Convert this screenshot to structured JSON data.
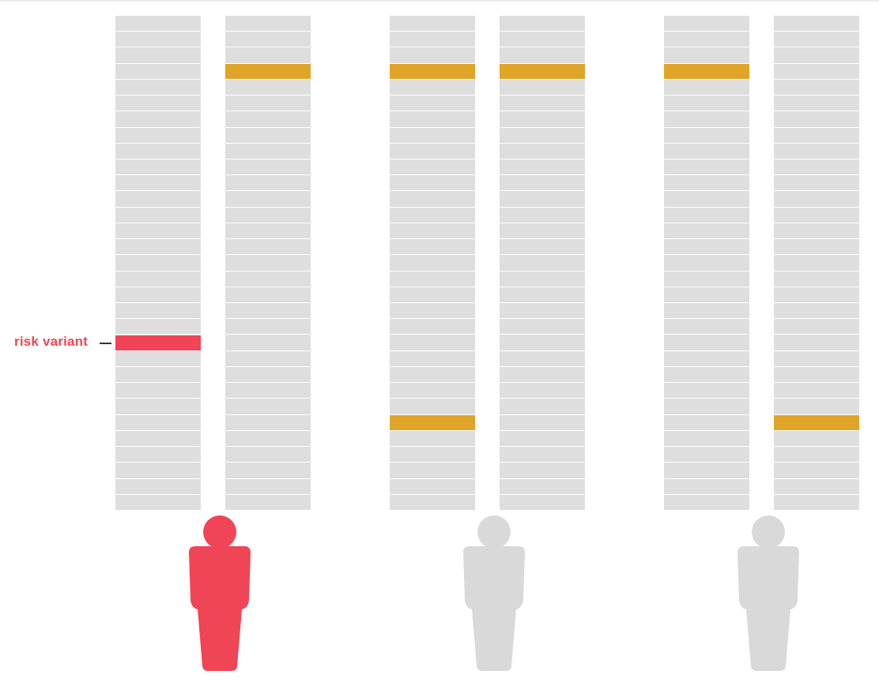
{
  "diagram": {
    "label": "risk variant",
    "segments_per_column": 31,
    "colors": {
      "segment": "#dedede",
      "highlight": "#e0a528",
      "risk": "#f04556",
      "person_affected": "#f04556",
      "person_unaffected": "#d9d9d9"
    },
    "people": [
      {
        "affected": true,
        "columns": [
          {
            "markers": [
              {
                "segment": 20,
                "type": "risk"
              }
            ]
          },
          {
            "markers": [
              {
                "segment": 3,
                "type": "highlight"
              }
            ]
          }
        ]
      },
      {
        "affected": false,
        "columns": [
          {
            "markers": [
              {
                "segment": 3,
                "type": "highlight"
              },
              {
                "segment": 25,
                "type": "highlight"
              }
            ]
          },
          {
            "markers": [
              {
                "segment": 3,
                "type": "highlight"
              }
            ]
          }
        ]
      },
      {
        "affected": false,
        "columns": [
          {
            "markers": [
              {
                "segment": 3,
                "type": "highlight"
              }
            ]
          },
          {
            "markers": [
              {
                "segment": 25,
                "type": "highlight"
              }
            ]
          }
        ]
      }
    ]
  }
}
